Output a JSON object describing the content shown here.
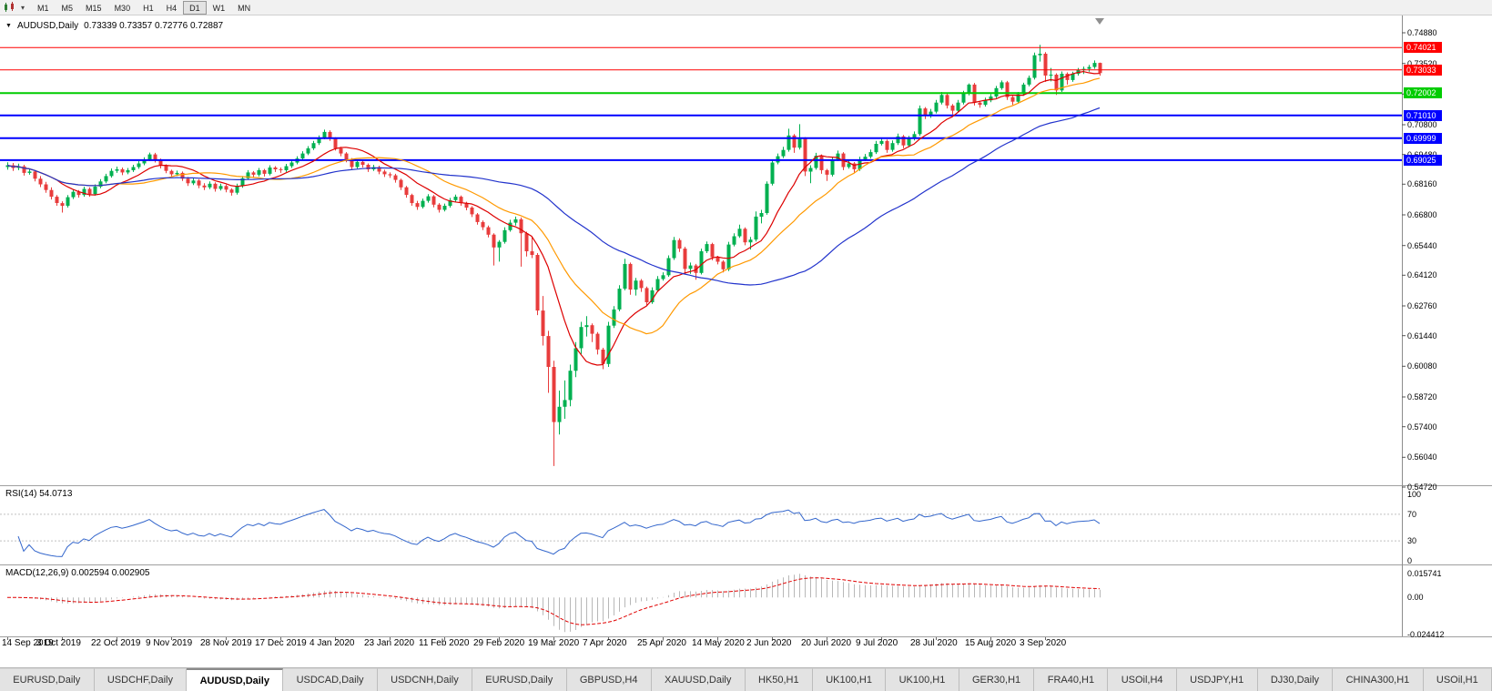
{
  "toolbar": {
    "timeframes": [
      "M1",
      "M5",
      "M15",
      "M30",
      "H1",
      "H4",
      "D1",
      "W1",
      "MN"
    ],
    "active_timeframe": "D1"
  },
  "chart": {
    "title_symbol": "AUDUSD,Daily",
    "title_ohlc": "0.73339 0.73357 0.72776 0.72887"
  },
  "colors": {
    "candle_up": "#00B050",
    "candle_down": "#E83C3C",
    "rsi_line": "#3366CC",
    "rsi_level": "#C0C0C0",
    "macd_histogram": "#B8B8B8",
    "macd_signal": "#E00000",
    "axis_text": "#000000"
  },
  "chart_data": {
    "type": "candlestick",
    "symbol": "AUDUSD",
    "period": "Daily",
    "price_axis": {
      "min": 0.5472,
      "max": 0.7488,
      "labels": [
        "0.74880",
        "0.73520",
        "0.72160",
        "0.70800",
        "0.69480",
        "0.68160",
        "0.66800",
        "0.65440",
        "0.64120",
        "0.62760",
        "0.61440",
        "0.60080",
        "0.58720",
        "0.57400",
        "0.56040",
        "0.54720"
      ]
    },
    "time_labels": [
      "14 Sep 2019",
      "3 Oct 2019",
      "22 Oct 2019",
      "9 Nov 2019",
      "28 Nov 2019",
      "17 Dec 2019",
      "4 Jan 2020",
      "23 Jan 2020",
      "11 Feb 2020",
      "29 Feb 2020",
      "19 Mar 2020",
      "7 Apr 2020",
      "25 Apr 2020",
      "14 May 2020",
      "2 Jun 2020",
      "20 Jun 2020",
      "9 Jul 2020",
      "28 Jul 2020",
      "15 Aug 2020",
      "3 Sep 2020"
    ],
    "candles_per_label": 10,
    "hlines": [
      {
        "price": 0.74021,
        "label": "0.74021",
        "color": "#FF0000",
        "width": 1
      },
      {
        "price": 0.73033,
        "label": "0.73033",
        "color": "#FF0000",
        "width": 1
      },
      {
        "price": 0.72002,
        "label": "0.72002",
        "color": "#00CC00",
        "width": 2
      },
      {
        "price": 0.7101,
        "label": "0.71010",
        "color": "#0000FF",
        "width": 2
      },
      {
        "price": 0.69999,
        "label": "0.69999",
        "color": "#0000FF",
        "width": 2
      },
      {
        "price": 0.69025,
        "label": "0.69025",
        "color": "#0000FF",
        "width": 2
      }
    ],
    "moving_averages": [
      {
        "period": 10,
        "color": "#DD0000"
      },
      {
        "period": 21,
        "color": "#FF9900"
      },
      {
        "period": 50,
        "color": "#2233CC"
      }
    ],
    "rsi": {
      "title": "RSI(14) 54.0713",
      "period": 14,
      "levels": [
        70,
        30
      ],
      "axis_labels": [
        "100",
        "70",
        "30",
        "0"
      ],
      "range": [
        0,
        100
      ]
    },
    "macd": {
      "title": "MACD(12,26,9) 0.002594 0.002905",
      "fast": 12,
      "slow": 26,
      "signal": 9,
      "axis_labels": [
        "0.015741",
        "0.00",
        "-0.024412"
      ],
      "range": [
        -0.024412,
        0.015741
      ]
    },
    "candles": [
      [
        0.6872,
        0.6893,
        0.686,
        0.688
      ],
      [
        0.688,
        0.689,
        0.6855,
        0.6868
      ],
      [
        0.6868,
        0.6887,
        0.6858,
        0.6875
      ],
      [
        0.6875,
        0.6882,
        0.6834,
        0.6846
      ],
      [
        0.6846,
        0.6864,
        0.6838,
        0.6852
      ],
      [
        0.6852,
        0.6858,
        0.6808,
        0.682
      ],
      [
        0.682,
        0.6832,
        0.6783,
        0.6795
      ],
      [
        0.6795,
        0.6806,
        0.6758,
        0.677
      ],
      [
        0.677,
        0.6782,
        0.6728,
        0.674
      ],
      [
        0.674,
        0.6748,
        0.67,
        0.6712
      ],
      [
        0.6712,
        0.672,
        0.667,
        0.67
      ],
      [
        0.67,
        0.6748,
        0.6692,
        0.6738
      ],
      [
        0.6738,
        0.6772,
        0.673,
        0.6762
      ],
      [
        0.6762,
        0.677,
        0.6736,
        0.6748
      ],
      [
        0.6748,
        0.6785,
        0.674,
        0.6775
      ],
      [
        0.6775,
        0.6782,
        0.674,
        0.6752
      ],
      [
        0.6752,
        0.6795,
        0.6745,
        0.6785
      ],
      [
        0.6785,
        0.6818,
        0.6778,
        0.6808
      ],
      [
        0.6808,
        0.6842,
        0.68,
        0.6832
      ],
      [
        0.6832,
        0.6866,
        0.6825,
        0.6855
      ],
      [
        0.6855,
        0.6874,
        0.6846,
        0.6862
      ],
      [
        0.6862,
        0.687,
        0.6836,
        0.6848
      ],
      [
        0.6848,
        0.6868,
        0.684,
        0.6858
      ],
      [
        0.6858,
        0.6882,
        0.685,
        0.6872
      ],
      [
        0.6872,
        0.6898,
        0.6864,
        0.6888
      ],
      [
        0.6888,
        0.6915,
        0.688,
        0.6905
      ],
      [
        0.6905,
        0.6936,
        0.6898,
        0.6928
      ],
      [
        0.6928,
        0.6935,
        0.6892,
        0.6902
      ],
      [
        0.6902,
        0.691,
        0.6866,
        0.6878
      ],
      [
        0.6878,
        0.6884,
        0.6845,
        0.6855
      ],
      [
        0.6855,
        0.686,
        0.683,
        0.684
      ],
      [
        0.684,
        0.6856,
        0.6832,
        0.6846
      ],
      [
        0.6846,
        0.6852,
        0.681,
        0.682
      ],
      [
        0.682,
        0.6828,
        0.6788,
        0.68
      ],
      [
        0.68,
        0.6822,
        0.6792,
        0.6812
      ],
      [
        0.6812,
        0.6818,
        0.6778,
        0.679
      ],
      [
        0.679,
        0.68,
        0.677,
        0.6782
      ],
      [
        0.6782,
        0.6808,
        0.6774,
        0.6798
      ],
      [
        0.6798,
        0.6804,
        0.6763,
        0.6775
      ],
      [
        0.6775,
        0.6798,
        0.6768,
        0.6788
      ],
      [
        0.6788,
        0.6794,
        0.676,
        0.6772
      ],
      [
        0.6772,
        0.6778,
        0.6745,
        0.6758
      ],
      [
        0.6758,
        0.6798,
        0.675,
        0.6788
      ],
      [
        0.6788,
        0.6832,
        0.678,
        0.6822
      ],
      [
        0.6822,
        0.6858,
        0.6815,
        0.6848
      ],
      [
        0.6848,
        0.6854,
        0.6826,
        0.6838
      ],
      [
        0.6838,
        0.6868,
        0.683,
        0.6858
      ],
      [
        0.6858,
        0.6864,
        0.683,
        0.6842
      ],
      [
        0.6842,
        0.688,
        0.6835,
        0.687
      ],
      [
        0.687,
        0.6876,
        0.685,
        0.6862
      ],
      [
        0.6862,
        0.687,
        0.6846,
        0.6858
      ],
      [
        0.6858,
        0.6886,
        0.685,
        0.6876
      ],
      [
        0.6876,
        0.6902,
        0.6868,
        0.6892
      ],
      [
        0.6892,
        0.692,
        0.6884,
        0.691
      ],
      [
        0.691,
        0.6942,
        0.6902,
        0.6932
      ],
      [
        0.6932,
        0.6965,
        0.6925,
        0.6955
      ],
      [
        0.6955,
        0.6988,
        0.6948,
        0.6978
      ],
      [
        0.6978,
        0.7012,
        0.697,
        0.7002
      ],
      [
        0.7002,
        0.7038,
        0.6995,
        0.7028
      ],
      [
        0.7028,
        0.7035,
        0.6988,
        0.6998
      ],
      [
        0.6998,
        0.7004,
        0.6945,
        0.6955
      ],
      [
        0.6955,
        0.6962,
        0.692,
        0.6932
      ],
      [
        0.6932,
        0.6938,
        0.6893,
        0.6905
      ],
      [
        0.6905,
        0.6912,
        0.686,
        0.6872
      ],
      [
        0.6872,
        0.6905,
        0.6865,
        0.6895
      ],
      [
        0.6895,
        0.6902,
        0.687,
        0.6882
      ],
      [
        0.6882,
        0.6888,
        0.685,
        0.6862
      ],
      [
        0.6862,
        0.6882,
        0.6855,
        0.6872
      ],
      [
        0.6872,
        0.6878,
        0.684,
        0.6852
      ],
      [
        0.6852,
        0.686,
        0.6828,
        0.684
      ],
      [
        0.684,
        0.6848,
        0.6824,
        0.6835
      ],
      [
        0.6835,
        0.6842,
        0.6803,
        0.6815
      ],
      [
        0.6815,
        0.682,
        0.677,
        0.6782
      ],
      [
        0.6782,
        0.6788,
        0.6736,
        0.6748
      ],
      [
        0.6748,
        0.6754,
        0.67,
        0.6712
      ],
      [
        0.6712,
        0.6722,
        0.6682,
        0.6695
      ],
      [
        0.6695,
        0.6732,
        0.6688,
        0.6722
      ],
      [
        0.6722,
        0.6752,
        0.6714,
        0.6742
      ],
      [
        0.6742,
        0.6748,
        0.6693,
        0.6705
      ],
      [
        0.6705,
        0.6712,
        0.667,
        0.6682
      ],
      [
        0.6682,
        0.671,
        0.6675,
        0.67
      ],
      [
        0.67,
        0.6735,
        0.6692,
        0.6725
      ],
      [
        0.6725,
        0.675,
        0.6718,
        0.674
      ],
      [
        0.674,
        0.6746,
        0.67,
        0.6712
      ],
      [
        0.6712,
        0.6718,
        0.668,
        0.6692
      ],
      [
        0.6692,
        0.6698,
        0.665,
        0.6662
      ],
      [
        0.6662,
        0.6668,
        0.6616,
        0.6628
      ],
      [
        0.6628,
        0.6635,
        0.6592,
        0.6605
      ],
      [
        0.6605,
        0.6612,
        0.656,
        0.6572
      ],
      [
        0.6572,
        0.6578,
        0.6435,
        0.6515
      ],
      [
        0.6515,
        0.6548,
        0.6452,
        0.654
      ],
      [
        0.654,
        0.6605,
        0.6532,
        0.6592
      ],
      [
        0.6592,
        0.6638,
        0.6585,
        0.6625
      ],
      [
        0.6625,
        0.6652,
        0.6612,
        0.664
      ],
      [
        0.664,
        0.6648,
        0.643,
        0.6578
      ],
      [
        0.6578,
        0.6585,
        0.6475,
        0.6498
      ],
      [
        0.6498,
        0.656,
        0.6468,
        0.6482
      ],
      [
        0.6482,
        0.649,
        0.6215,
        0.6235
      ],
      [
        0.6235,
        0.63,
        0.608,
        0.6122
      ],
      [
        0.6122,
        0.6145,
        0.587,
        0.5985
      ],
      [
        0.5985,
        0.6012,
        0.5545,
        0.574
      ],
      [
        0.574,
        0.588,
        0.5685,
        0.5808
      ],
      [
        0.5808,
        0.5925,
        0.5755,
        0.5838
      ],
      [
        0.5838,
        0.5995,
        0.581,
        0.5968
      ],
      [
        0.5968,
        0.6095,
        0.594,
        0.6068
      ],
      [
        0.6068,
        0.6185,
        0.6042,
        0.6162
      ],
      [
        0.6162,
        0.621,
        0.612,
        0.617
      ],
      [
        0.617,
        0.6178,
        0.6095,
        0.6132
      ],
      [
        0.6132,
        0.614,
        0.604,
        0.6062
      ],
      [
        0.6062,
        0.607,
        0.5975,
        0.5998
      ],
      [
        0.5998,
        0.6185,
        0.5985,
        0.6168
      ],
      [
        0.6168,
        0.6255,
        0.6158,
        0.624
      ],
      [
        0.624,
        0.6348,
        0.6232,
        0.6332
      ],
      [
        0.6332,
        0.6465,
        0.6325,
        0.6442
      ],
      [
        0.6442,
        0.6448,
        0.6305,
        0.6328
      ],
      [
        0.6328,
        0.638,
        0.6302,
        0.6368
      ],
      [
        0.6368,
        0.6375,
        0.6318,
        0.6335
      ],
      [
        0.6335,
        0.6342,
        0.6254,
        0.6272
      ],
      [
        0.6272,
        0.6338,
        0.6265,
        0.6325
      ],
      [
        0.6325,
        0.6388,
        0.6318,
        0.6375
      ],
      [
        0.6375,
        0.6405,
        0.6368,
        0.6392
      ],
      [
        0.6392,
        0.648,
        0.6385,
        0.6468
      ],
      [
        0.6468,
        0.6562,
        0.646,
        0.6548
      ],
      [
        0.6548,
        0.6556,
        0.6495,
        0.651
      ],
      [
        0.651,
        0.6518,
        0.6402,
        0.642
      ],
      [
        0.642,
        0.6448,
        0.6398,
        0.6435
      ],
      [
        0.6435,
        0.6442,
        0.6372,
        0.6402
      ],
      [
        0.6402,
        0.651,
        0.6395,
        0.6498
      ],
      [
        0.6498,
        0.6542,
        0.649,
        0.653
      ],
      [
        0.653,
        0.6536,
        0.6458,
        0.6472
      ],
      [
        0.6472,
        0.6478,
        0.644,
        0.6452
      ],
      [
        0.6452,
        0.6458,
        0.6404,
        0.6418
      ],
      [
        0.6418,
        0.654,
        0.641,
        0.6528
      ],
      [
        0.6528,
        0.6578,
        0.652,
        0.6565
      ],
      [
        0.6565,
        0.6616,
        0.6558,
        0.6598
      ],
      [
        0.6598,
        0.6604,
        0.6525,
        0.6538
      ],
      [
        0.6538,
        0.6562,
        0.6506,
        0.655
      ],
      [
        0.655,
        0.6675,
        0.6542,
        0.6652
      ],
      [
        0.6652,
        0.6682,
        0.6622,
        0.6668
      ],
      [
        0.6668,
        0.6808,
        0.666,
        0.6798
      ],
      [
        0.6798,
        0.6905,
        0.679,
        0.6892
      ],
      [
        0.6892,
        0.6932,
        0.6884,
        0.692
      ],
      [
        0.692,
        0.6962,
        0.6912,
        0.6948
      ],
      [
        0.6948,
        0.7042,
        0.694,
        0.7012
      ],
      [
        0.7012,
        0.7018,
        0.6935,
        0.6958
      ],
      [
        0.6958,
        0.7062,
        0.695,
        0.6998
      ],
      [
        0.6998,
        0.7005,
        0.6832,
        0.6852
      ],
      [
        0.6852,
        0.688,
        0.68,
        0.6868
      ],
      [
        0.6868,
        0.6935,
        0.686,
        0.6922
      ],
      [
        0.6922,
        0.6928,
        0.6842,
        0.6858
      ],
      [
        0.6858,
        0.6864,
        0.681,
        0.6838
      ],
      [
        0.6838,
        0.6918,
        0.683,
        0.6905
      ],
      [
        0.6905,
        0.6945,
        0.6898,
        0.6932
      ],
      [
        0.6932,
        0.6938,
        0.6858,
        0.6872
      ],
      [
        0.6872,
        0.69,
        0.6865,
        0.6888
      ],
      [
        0.6888,
        0.6894,
        0.6848,
        0.6862
      ],
      [
        0.6862,
        0.6918,
        0.6855,
        0.6905
      ],
      [
        0.6905,
        0.693,
        0.6898,
        0.6918
      ],
      [
        0.6918,
        0.695,
        0.691,
        0.6938
      ],
      [
        0.6938,
        0.6988,
        0.693,
        0.6975
      ],
      [
        0.6975,
        0.7,
        0.6968,
        0.6988
      ],
      [
        0.6988,
        0.6994,
        0.6935,
        0.6948
      ],
      [
        0.6948,
        0.699,
        0.694,
        0.6978
      ],
      [
        0.6978,
        0.702,
        0.697,
        0.7008
      ],
      [
        0.7008,
        0.7014,
        0.6955,
        0.6968
      ],
      [
        0.6968,
        0.701,
        0.696,
        0.6998
      ],
      [
        0.6998,
        0.703,
        0.699,
        0.7018
      ],
      [
        0.7018,
        0.7145,
        0.701,
        0.7132
      ],
      [
        0.7132,
        0.7138,
        0.7085,
        0.7098
      ],
      [
        0.7098,
        0.713,
        0.709,
        0.7118
      ],
      [
        0.7118,
        0.717,
        0.711,
        0.7158
      ],
      [
        0.7158,
        0.7205,
        0.715,
        0.7192
      ],
      [
        0.7192,
        0.7198,
        0.7132,
        0.7145
      ],
      [
        0.7145,
        0.7152,
        0.7105,
        0.7122
      ],
      [
        0.7122,
        0.717,
        0.7115,
        0.7158
      ],
      [
        0.7158,
        0.721,
        0.715,
        0.7198
      ],
      [
        0.7198,
        0.7243,
        0.719,
        0.7238
      ],
      [
        0.7238,
        0.7245,
        0.7145,
        0.7158
      ],
      [
        0.7158,
        0.7165,
        0.7135,
        0.7148
      ],
      [
        0.7148,
        0.718,
        0.714,
        0.7168
      ],
      [
        0.7168,
        0.7196,
        0.716,
        0.7185
      ],
      [
        0.7185,
        0.7232,
        0.7178,
        0.7222
      ],
      [
        0.7222,
        0.7256,
        0.7215,
        0.7248
      ],
      [
        0.7248,
        0.7254,
        0.717,
        0.7182
      ],
      [
        0.7182,
        0.7188,
        0.7148,
        0.7162
      ],
      [
        0.7162,
        0.7205,
        0.7155,
        0.7195
      ],
      [
        0.7195,
        0.7246,
        0.7188,
        0.7238
      ],
      [
        0.7238,
        0.7278,
        0.723,
        0.7268
      ],
      [
        0.7268,
        0.738,
        0.726,
        0.7368
      ],
      [
        0.7368,
        0.7414,
        0.734,
        0.7375
      ],
      [
        0.7375,
        0.7382,
        0.725,
        0.7278
      ],
      [
        0.7278,
        0.7312,
        0.7252,
        0.7282
      ],
      [
        0.7282,
        0.7288,
        0.7192,
        0.7212
      ],
      [
        0.7212,
        0.7296,
        0.7205,
        0.7286
      ],
      [
        0.7286,
        0.7292,
        0.7238,
        0.7258
      ],
      [
        0.7258,
        0.7295,
        0.725,
        0.7286
      ],
      [
        0.7286,
        0.7312,
        0.7278,
        0.7302
      ],
      [
        0.7302,
        0.7318,
        0.7285,
        0.7308
      ],
      [
        0.7308,
        0.7325,
        0.7295,
        0.7316
      ],
      [
        0.7316,
        0.7345,
        0.7308,
        0.7334
      ],
      [
        0.73339,
        0.73357,
        0.72776,
        0.72887
      ]
    ]
  },
  "tabs": {
    "active_index": 2,
    "items": [
      "EURUSD,Daily",
      "USDCHF,Daily",
      "AUDUSD,Daily",
      "USDCAD,Daily",
      "USDCNH,Daily",
      "EURUSD,Daily",
      "GBPUSD,H4",
      "XAUUSD,Daily",
      "HK50,H1",
      "UK100,H1",
      "UK100,H1",
      "GER30,H1",
      "FRA40,H1",
      "USOil,H4",
      "USDJPY,H1",
      "DJ30,Daily",
      "CHINA300,H1",
      "USOil,H1"
    ]
  }
}
